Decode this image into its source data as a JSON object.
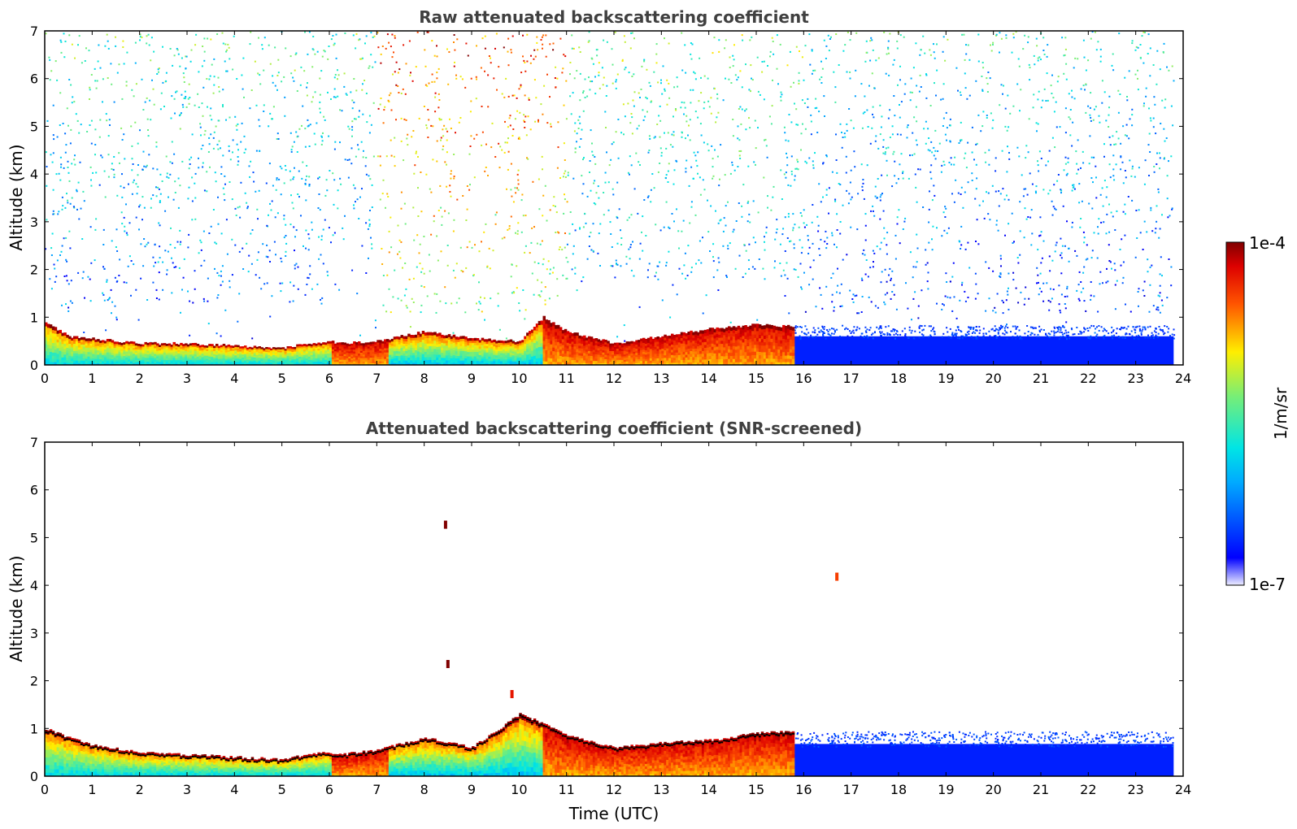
{
  "chart_data": [
    {
      "type": "heatmap",
      "title": "Raw attenuated backscattering coefficient",
      "xlabel": "",
      "ylabel": "Altitude (km)",
      "xlim": [
        0,
        24
      ],
      "ylim": [
        0,
        7
      ],
      "xticks": [
        "0",
        "1",
        "2",
        "3",
        "4",
        "5",
        "6",
        "7",
        "8",
        "9",
        "10",
        "11",
        "12",
        "13",
        "14",
        "15",
        "16",
        "17",
        "18",
        "19",
        "20",
        "21",
        "22",
        "23",
        "24"
      ],
      "yticks": [
        "0",
        "1",
        "2",
        "3",
        "4",
        "5",
        "6",
        "7"
      ],
      "data_end_time": 23.8,
      "noise_background": [
        {
          "t0": 0,
          "t1": 7.0,
          "level": 0.5
        },
        {
          "t0": 7.0,
          "t1": 11.0,
          "level": 0.85
        },
        {
          "t0": 11.0,
          "t1": 16.0,
          "level": 0.55
        },
        {
          "t0": 16.0,
          "t1": 23.8,
          "level": 0.45
        }
      ],
      "noise_gap_top_km": [
        {
          "t0": 0.6,
          "t1": 6.2,
          "top": 1.3
        },
        {
          "t0": 6.2,
          "t1": 7.0,
          "top": 2.5
        },
        {
          "t0": 10.8,
          "t1": 15.8,
          "top": 1.8
        }
      ],
      "blue_surface_layer": {
        "t0": 15.8,
        "t1": 23.8,
        "top": 0.8,
        "level": 0.12
      },
      "boundary_layer_top_km": {
        "times": [
          0,
          0.5,
          1,
          2,
          3,
          4,
          5,
          5.5,
          6,
          6.2,
          7,
          8,
          9,
          10,
          10.5,
          11,
          12,
          13,
          14,
          15,
          15.8,
          16.5,
          17,
          17.5
        ],
        "tops": [
          0.9,
          0.6,
          0.55,
          0.45,
          0.45,
          0.4,
          0.35,
          0.45,
          0.5,
          0.45,
          0.5,
          0.7,
          0.55,
          0.5,
          1.0,
          0.7,
          0.45,
          0.6,
          0.75,
          0.85,
          0.8,
          1.0,
          1.05,
          0.9
        ]
      }
    },
    {
      "type": "heatmap",
      "title": "Attenuated backscattering coefficient (SNR-screened)",
      "xlabel": "Time (UTC)",
      "ylabel": "Altitude (km)",
      "xlim": [
        0,
        24
      ],
      "ylim": [
        0,
        7
      ],
      "xticks": [
        "0",
        "1",
        "2",
        "3",
        "4",
        "5",
        "6",
        "7",
        "8",
        "9",
        "10",
        "11",
        "12",
        "13",
        "14",
        "15",
        "16",
        "17",
        "18",
        "19",
        "20",
        "21",
        "22",
        "23",
        "24"
      ],
      "yticks": [
        "0",
        "1",
        "2",
        "3",
        "4",
        "5",
        "6",
        "7"
      ],
      "data_end_time": 23.8,
      "blue_surface_layer": {
        "t0": 15.8,
        "t1": 23.8,
        "top": 0.9,
        "level": 0.12
      },
      "boundary_layer_top_km": {
        "times": [
          0,
          0.5,
          1,
          2,
          3,
          4,
          5,
          5.5,
          6,
          6.2,
          7,
          8,
          9,
          10,
          10.5,
          11,
          12,
          13,
          14,
          15,
          15.8,
          16.5,
          17,
          17.5
        ],
        "tops": [
          1.0,
          0.8,
          0.65,
          0.5,
          0.45,
          0.4,
          0.35,
          0.45,
          0.5,
          0.45,
          0.55,
          0.8,
          0.6,
          1.3,
          1.1,
          0.85,
          0.6,
          0.7,
          0.75,
          0.9,
          0.95,
          1.2,
          1.05,
          0.9
        ]
      },
      "isolated_features": [
        {
          "t": 8.5,
          "z": 2.35,
          "level": 1.0
        },
        {
          "t": 9.85,
          "z": 1.72,
          "level": 0.9
        },
        {
          "t": 16.7,
          "z": 4.18,
          "level": 0.85
        },
        {
          "t": 8.45,
          "z": 5.27,
          "level": 1.0
        }
      ]
    }
  ],
  "colorbar": {
    "label": "1/m/sr",
    "max_label": "1e-4",
    "min_label": "1e-7",
    "colormap": "jet"
  }
}
